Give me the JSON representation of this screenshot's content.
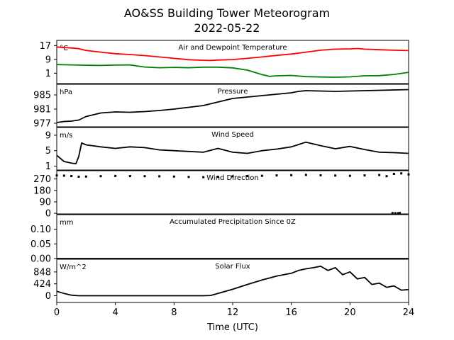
{
  "title_line1": "AO&SS Building Tower Meteorogram",
  "title_line2": "2022-05-22",
  "x_axis": {
    "label": "Time (UTC)",
    "range": [
      0,
      24
    ],
    "ticks": [
      "0",
      "4",
      "8",
      "12",
      "16",
      "20",
      "24"
    ]
  },
  "colors": {
    "temperature": "#ff0000",
    "dewpoint": "#008000",
    "default": "#000000"
  },
  "chart_data": [
    {
      "type": "line",
      "title": "Air and Dewpoint Temperature",
      "unit": "°C",
      "ylim": [
        -5,
        20
      ],
      "yticks": [
        "17",
        "9",
        "1"
      ],
      "series": [
        {
          "color": "#ff0000",
          "x": [
            0,
            0.5,
            1,
            1.5,
            2,
            3,
            4,
            5,
            6,
            7,
            8,
            9,
            10,
            10.5,
            11,
            12,
            13,
            14,
            15,
            16,
            17,
            18,
            19,
            20,
            20.5,
            21,
            22,
            23,
            24
          ],
          "y": [
            16.2,
            15.8,
            15.6,
            15.2,
            14.2,
            13.2,
            12.3,
            11.8,
            11.2,
            10.4,
            9.6,
            8.8,
            8.5,
            8.4,
            8.6,
            8.9,
            9.6,
            10.4,
            11.3,
            12.1,
            13.2,
            14.3,
            14.9,
            15.1,
            15.3,
            14.9,
            14.6,
            14.3,
            14.1
          ]
        },
        {
          "color": "#008000",
          "x": [
            0,
            1,
            2,
            3,
            4,
            5,
            6,
            7,
            8,
            9,
            10,
            11,
            12,
            13,
            13.5,
            14,
            14.5,
            15,
            16,
            17,
            18,
            19,
            20,
            21,
            22,
            23,
            24
          ],
          "y": [
            6.0,
            5.8,
            5.6,
            5.5,
            5.7,
            5.8,
            4.6,
            4.2,
            4.4,
            4.2,
            4.5,
            4.5,
            4.1,
            2.8,
            1.5,
            0.2,
            -0.8,
            -0.5,
            -0.3,
            -1.0,
            -1.2,
            -1.3,
            -1.1,
            -0.5,
            -0.4,
            0.3,
            1.5
          ]
        }
      ]
    },
    {
      "type": "line",
      "title": "Pressure",
      "unit": "hPa",
      "ylim": [
        976,
        988
      ],
      "yticks": [
        "985",
        "981",
        "977"
      ],
      "series": [
        {
          "color": "#000000",
          "x": [
            0,
            0.5,
            1,
            1.5,
            2,
            2.5,
            3,
            4,
            5,
            6,
            7,
            8,
            9,
            10,
            11,
            12,
            13,
            14,
            15,
            16,
            16.5,
            17,
            18,
            19,
            20,
            21,
            22,
            23,
            24
          ],
          "y": [
            977.2,
            977.5,
            977.6,
            977.9,
            978.9,
            979.4,
            979.9,
            980.2,
            980.1,
            980.3,
            980.6,
            981.0,
            981.5,
            982.0,
            983.0,
            984.0,
            984.4,
            984.8,
            985.2,
            985.6,
            986.0,
            986.2,
            986.1,
            986.0,
            986.1,
            986.2,
            986.3,
            986.4,
            986.5
          ]
        }
      ]
    },
    {
      "type": "line",
      "title": "Wind Speed",
      "unit": "m/s",
      "ylim": [
        0,
        11
      ],
      "yticks": [
        "9",
        "5",
        "1"
      ],
      "series": [
        {
          "color": "#000000",
          "x": [
            0,
            0.5,
            1,
            1.3,
            1.5,
            1.7,
            2,
            3,
            4,
            5,
            6,
            7,
            8,
            9,
            10,
            11,
            12,
            13,
            14,
            15,
            16,
            16.5,
            17,
            18,
            19,
            20,
            21,
            22,
            23,
            24
          ],
          "y": [
            3.8,
            2.2,
            1.8,
            1.6,
            3.5,
            7.0,
            6.5,
            6.0,
            5.6,
            6.0,
            5.8,
            5.2,
            5.0,
            4.8,
            4.6,
            5.6,
            4.6,
            4.3,
            5.0,
            5.4,
            6.0,
            6.6,
            7.2,
            6.3,
            5.5,
            6.1,
            5.3,
            4.6,
            4.5,
            4.3
          ]
        }
      ]
    },
    {
      "type": "scatter",
      "title": "Wind Direction",
      "ylim": [
        -5,
        335
      ],
      "yticks": [
        "270",
        "180",
        "90",
        "0"
      ],
      "series": [
        {
          "color": "#000000",
          "x": [
            0,
            0.5,
            1,
            1.5,
            2,
            3,
            4,
            5,
            6,
            7,
            8,
            9,
            10,
            11,
            12,
            13,
            14,
            15,
            16,
            17,
            18,
            19,
            20,
            21,
            22,
            22.5,
            23,
            23.5,
            24
          ],
          "y": [
            298,
            296,
            293,
            288,
            289,
            292,
            294,
            293,
            292,
            291,
            289,
            286,
            284,
            287,
            291,
            293,
            295,
            298,
            300,
            302,
            299,
            297,
            295,
            298,
            301,
            292,
            310,
            314,
            306
          ]
        },
        {
          "color": "#000000",
          "x": [
            22.9,
            23.1,
            23.3,
            23.4
          ],
          "y": [
            2,
            1,
            1,
            2
          ]
        }
      ]
    },
    {
      "type": "line",
      "title": "Accumulated Precipitation Since 0Z",
      "unit": "mm",
      "ylim": [
        0,
        0.15
      ],
      "yticks": [
        "0.10",
        "0.05",
        "0.00"
      ],
      "series": [
        {
          "color": "#000000",
          "x": [
            0,
            24
          ],
          "y": [
            0,
            0
          ]
        }
      ]
    },
    {
      "type": "line",
      "title": "Solar Flux",
      "unit": "W/m^2",
      "ylim": [
        -240,
        1300
      ],
      "yticks": [
        "848",
        "424",
        "0"
      ],
      "series": [
        {
          "color": "#000000",
          "x": [
            0,
            0.5,
            1,
            1.5,
            2,
            4,
            6,
            8,
            10,
            10.5,
            11,
            12,
            13,
            14,
            15,
            16,
            16.5,
            17,
            17.5,
            18,
            18.5,
            19,
            19.5,
            20,
            20.5,
            21,
            21.5,
            22,
            22.5,
            23,
            23.5,
            24
          ],
          "y": [
            160,
            80,
            20,
            0,
            0,
            0,
            0,
            0,
            0,
            10,
            80,
            230,
            400,
            560,
            700,
            800,
            900,
            960,
            1000,
            1050,
            900,
            1000,
            750,
            850,
            600,
            650,
            400,
            450,
            300,
            350,
            200,
            220
          ]
        }
      ]
    }
  ]
}
